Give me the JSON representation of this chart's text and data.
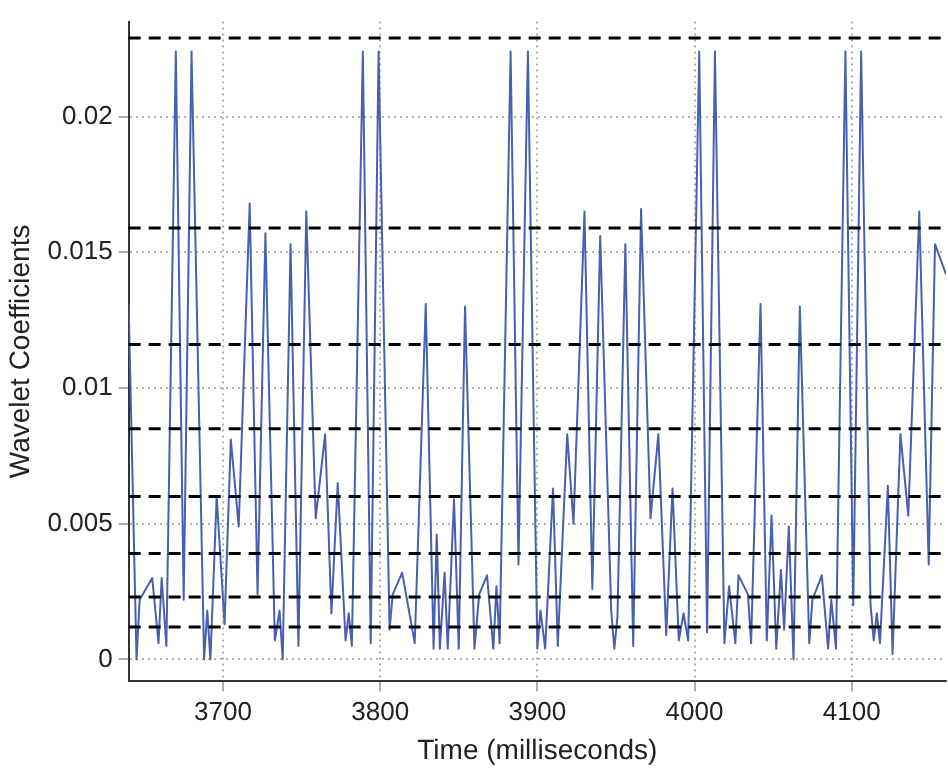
{
  "chart_data": {
    "type": "line",
    "xlabel": "Time (milliseconds)",
    "ylabel": "Wavelet Coefficients",
    "xlim": [
      3640,
      4160
    ],
    "xticks": [
      3700,
      3800,
      3900,
      4000,
      4100
    ],
    "ylim": [
      -0.0008,
      0.0235
    ],
    "yticks": [
      0,
      0.005,
      0.01,
      0.015,
      0.02
    ],
    "grid": true,
    "legend": false,
    "marker": "none",
    "line_style": "solid",
    "ref_lines": [
      {
        "axis": "y",
        "value": 0.0229,
        "color": "#000000",
        "line_style": "dashed"
      },
      {
        "axis": "y",
        "value": 0.0159,
        "color": "#000000",
        "line_style": "dashed"
      },
      {
        "axis": "y",
        "value": 0.0116,
        "color": "#000000",
        "line_style": "dashed"
      },
      {
        "axis": "y",
        "value": 0.0085,
        "color": "#000000",
        "line_style": "dashed"
      },
      {
        "axis": "y",
        "value": 0.006,
        "color": "#000000",
        "line_style": "dashed"
      },
      {
        "axis": "y",
        "value": 0.0039,
        "color": "#000000",
        "line_style": "dashed"
      },
      {
        "axis": "y",
        "value": 0.0023,
        "color": "#000000",
        "line_style": "dashed"
      },
      {
        "axis": "y",
        "value": 0.0012,
        "color": "#000000",
        "line_style": "dashed"
      }
    ],
    "series": [
      {
        "color": "#4a5fb0",
        "x": [
          3640,
          3645,
          3647,
          3655,
          3659,
          3661,
          3664,
          3670,
          3675,
          3680,
          3688,
          3690,
          3692,
          3696,
          3701,
          3705,
          3710,
          3717,
          3722,
          3727,
          3733,
          3736,
          3738,
          3743,
          3748,
          3753,
          3759,
          3765,
          3769,
          3773,
          3778,
          3780,
          3782,
          3789,
          3794,
          3799,
          3806,
          3808,
          3814,
          3822,
          3829,
          3834,
          3836,
          3838,
          3841,
          3843,
          3847,
          3850,
          3854,
          3860,
          3863,
          3868,
          3872,
          3874,
          3876,
          3883,
          3888,
          3894,
          3900,
          3902,
          3905,
          3910,
          3913,
          3919,
          3923,
          3930,
          3935,
          3940,
          3947,
          3949,
          3951,
          3956,
          3961,
          3966,
          3972,
          3977,
          3982,
          3986,
          3990,
          3993,
          3996,
          4003,
          4008,
          4013,
          4019,
          4022,
          4026,
          4028,
          4034,
          4036,
          4042,
          4046,
          4049,
          4052,
          4055,
          4057,
          4060,
          4063,
          4067,
          4073,
          4075,
          4081,
          4085,
          4087,
          4090,
          4096,
          4101,
          4106,
          4112,
          4114,
          4116,
          4118,
          4123,
          4126,
          4131,
          4136,
          4143,
          4149,
          4153,
          4160
        ],
        "values": [
          0.0131,
          0,
          0.0022,
          0.003,
          0.0006,
          0.003,
          0.0005,
          0.0224,
          0.0022,
          0.0224,
          0,
          0.0018,
          0,
          0.006,
          0.0013,
          0.0081,
          0.0049,
          0.0168,
          0.0024,
          0.0157,
          0.0007,
          0.0018,
          0,
          0.0153,
          0.0005,
          0.0165,
          0.0052,
          0.0083,
          0.0017,
          0.0065,
          0.0007,
          0.0017,
          0.0005,
          0.0224,
          0.0006,
          0.0224,
          0.0011,
          0.0024,
          0.0032,
          0.0006,
          0.0131,
          0.0004,
          0.0046,
          0.0004,
          0.0032,
          0.0004,
          0.0059,
          0.0004,
          0.013,
          0.0004,
          0.0024,
          0.0031,
          0.0004,
          0.0027,
          0.0006,
          0.0224,
          0.0035,
          0.0224,
          0.0004,
          0.0018,
          0.0004,
          0.0063,
          0.0005,
          0.0083,
          0.005,
          0.0165,
          0.0026,
          0.0156,
          0.0018,
          0.0004,
          0.0016,
          0.0153,
          0.0005,
          0.0166,
          0.0052,
          0.0083,
          0.0009,
          0.0063,
          0.0007,
          0.0017,
          0.0007,
          0.0224,
          0.001,
          0.0224,
          0.0006,
          0.0027,
          0.0006,
          0.0031,
          0.0024,
          0.0006,
          0.0131,
          0.0007,
          0.0053,
          0.0004,
          0.0033,
          0.0011,
          0.0049,
          0,
          0.013,
          0.0006,
          0.0022,
          0.0031,
          0.0004,
          0.0022,
          0.0004,
          0.0224,
          0.002,
          0.0224,
          0.002,
          0.0007,
          0.0017,
          0.0006,
          0.0064,
          0.0002,
          0.0083,
          0.0053,
          0.0165,
          0.0035,
          0.0153,
          0.0142
        ]
      }
    ]
  }
}
